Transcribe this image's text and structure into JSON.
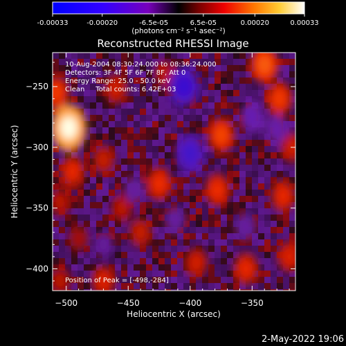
{
  "colorbar": {
    "tick_labels": [
      "-0.00033",
      "-0.00020",
      "-6.5e-05",
      "6.5e-05",
      "0.00020",
      "0.00033"
    ],
    "tick_values": [
      -0.00033,
      -0.0002,
      -6.5e-05,
      6.5e-05,
      0.0002,
      0.00033
    ],
    "min": -0.00033,
    "max": 0.00033,
    "units_label": "(photons cm⁻² s⁻¹ asec⁻²)"
  },
  "plot": {
    "title": "Reconstructed RHESSI Image",
    "info_lines": [
      "10-Aug-2004 08:30:24.000 to 08:36:24.000",
      "Detectors: 3F 4F 5F 6F 7F 8F, Att 0",
      "Energy Range: 25.0 - 50.0 keV",
      "Clean     Total counts: 6.42E+03"
    ],
    "peak_label": "Position of Peak = [-498,-284]",
    "timestamp": "2-May-2022 19:06"
  },
  "chart_data": {
    "type": "heatmap",
    "title": "Reconstructed RHESSI Image",
    "xlabel": "Heliocentric X (arcsec)",
    "ylabel": "Heliocentric Y (arcsec)",
    "xlim": [
      -511,
      -315
    ],
    "ylim": [
      -418,
      -222
    ],
    "x_ticks": [
      -500,
      -450,
      -400,
      -350
    ],
    "y_ticks": [
      -250,
      -300,
      -350,
      -400
    ],
    "peak_position": [
      -498,
      -284
    ],
    "color_scale": [
      "#0000cc",
      "#2200dd",
      "#5500bb",
      "#7700aa",
      "#550077",
      "#220022",
      "#661100",
      "#cc2200",
      "#ff5500",
      "#ffaa33",
      "#ffffff"
    ],
    "features": [
      {
        "x": -498,
        "y": -284,
        "v": 0.00033
      },
      {
        "x": -508,
        "y": -255,
        "v": 0.00018
      },
      {
        "x": -495,
        "y": -320,
        "v": 0.00016
      },
      {
        "x": -505,
        "y": -345,
        "v": 0.00012
      },
      {
        "x": -490,
        "y": -375,
        "v": 0.0001
      },
      {
        "x": -460,
        "y": -252,
        "v": 0.00014
      },
      {
        "x": -470,
        "y": -310,
        "v": 0.00013
      },
      {
        "x": -455,
        "y": -350,
        "v": 0.00012
      },
      {
        "x": -420,
        "y": -240,
        "v": 0.00012
      },
      {
        "x": -425,
        "y": -330,
        "v": 0.00017
      },
      {
        "x": -440,
        "y": -370,
        "v": 0.00013
      },
      {
        "x": -395,
        "y": -395,
        "v": 0.00014
      },
      {
        "x": -340,
        "y": -232,
        "v": 0.00021
      },
      {
        "x": -328,
        "y": -260,
        "v": 0.00018
      },
      {
        "x": -375,
        "y": -290,
        "v": 0.00019
      },
      {
        "x": -378,
        "y": -335,
        "v": 0.00017
      },
      {
        "x": -318,
        "y": -300,
        "v": 0.00014
      },
      {
        "x": -325,
        "y": -340,
        "v": 0.00016
      },
      {
        "x": -355,
        "y": -400,
        "v": 0.00016
      },
      {
        "x": -320,
        "y": -390,
        "v": 0.00015
      },
      {
        "x": -470,
        "y": -410,
        "v": 0.00015
      },
      {
        "x": -505,
        "y": -410,
        "v": 0.00012
      },
      {
        "x": -405,
        "y": -250,
        "v": -0.00026
      },
      {
        "x": -350,
        "y": -275,
        "v": -0.00016
      },
      {
        "x": -330,
        "y": -285,
        "v": -0.00014
      },
      {
        "x": -400,
        "y": -305,
        "v": -0.00024
      },
      {
        "x": -412,
        "y": -360,
        "v": -0.00012
      },
      {
        "x": -445,
        "y": -335,
        "v": -0.00012
      },
      {
        "x": -355,
        "y": -365,
        "v": -0.00012
      },
      {
        "x": -470,
        "y": -380,
        "v": -0.00011
      }
    ]
  }
}
